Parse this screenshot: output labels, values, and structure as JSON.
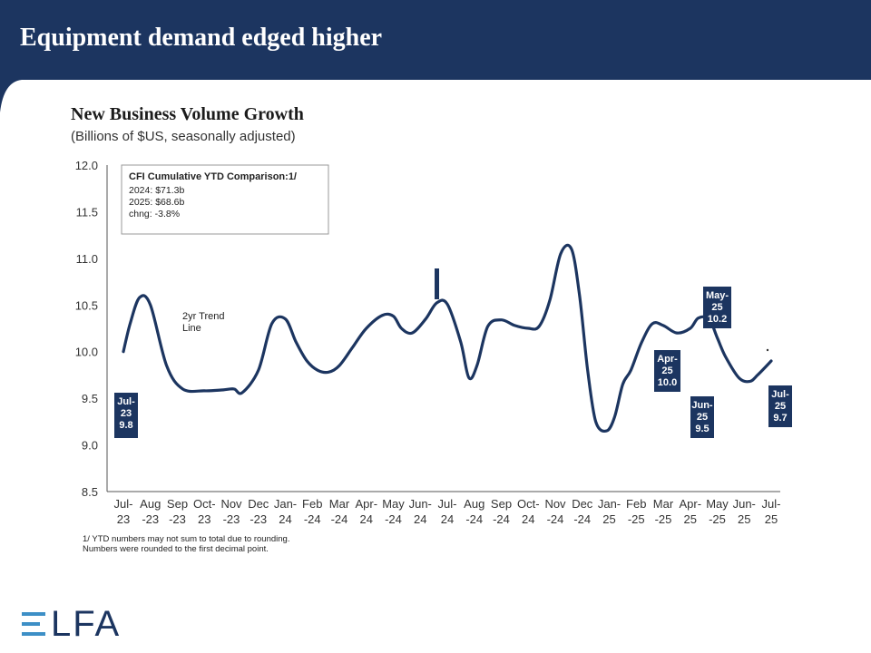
{
  "slide": {
    "title": "Equipment demand edged higher"
  },
  "logo": {
    "text": "LFA",
    "full_text": "ELFA"
  },
  "colors": {
    "header": "#1c3560",
    "line": "#1c3560",
    "callout_bg": "#1c3560",
    "logo_accent": "#3d8fc6"
  },
  "chart_data": {
    "type": "line",
    "title": "New Business Volume Growth",
    "subtitle": "(Billions of $US, seasonally adjusted)",
    "ylim": [
      8.5,
      12.0
    ],
    "yticks": [
      "12.0",
      "11.5",
      "11.0",
      "10.5",
      "10.0",
      "9.5",
      "9.0",
      "8.5"
    ],
    "ytick_values": [
      12.0,
      11.5,
      11.0,
      10.5,
      10.0,
      9.5,
      9.0,
      8.5
    ],
    "grid": false,
    "categories": [
      [
        "Jul-",
        "23"
      ],
      [
        "Aug",
        "-23"
      ],
      [
        "Sep",
        "-23"
      ],
      [
        "Oct-",
        "23"
      ],
      [
        "Nov",
        "-23"
      ],
      [
        "Dec",
        "-23"
      ],
      [
        "Jan-",
        "24"
      ],
      [
        "Feb",
        "-24"
      ],
      [
        "Mar",
        "-24"
      ],
      [
        "Apr-",
        "24"
      ],
      [
        "May",
        "-24"
      ],
      [
        "Jun-",
        "24"
      ],
      [
        "Jul-",
        "24"
      ],
      [
        "Aug",
        "-24"
      ],
      [
        "Sep",
        "-24"
      ],
      [
        "Oct-",
        "24"
      ],
      [
        "Nov",
        "-24"
      ],
      [
        "Dec",
        "-24"
      ],
      [
        "Jan-",
        "25"
      ],
      [
        "Feb",
        "-25"
      ],
      [
        "Mar",
        "-25"
      ],
      [
        "Apr-",
        "25"
      ],
      [
        "May",
        "-25"
      ],
      [
        "Jun-",
        "25"
      ],
      [
        "Jul-",
        "25"
      ]
    ],
    "series": [
      {
        "curve_x": [
          0,
          0.25,
          0.6,
          1.0,
          1.6,
          2.2,
          3.0,
          3.7,
          4.1,
          4.4,
          5.0,
          5.5,
          6.0,
          6.4,
          6.8,
          7.2,
          7.6,
          8.0,
          8.5,
          9.0,
          9.6,
          10.0,
          10.3,
          10.7,
          11.2,
          11.6,
          12.0,
          12.5,
          12.8,
          13.1,
          13.5,
          14.0,
          14.5,
          15.0,
          15.4,
          15.8,
          16.2,
          16.6,
          16.9,
          17.2,
          17.5,
          17.9,
          18.2,
          18.5,
          18.8,
          19.2,
          19.6,
          20.0,
          20.5,
          21.0,
          21.3,
          21.7,
          22.0,
          22.3,
          22.8,
          23.2,
          23.5,
          24.0
        ],
        "curve_y": [
          10.0,
          10.3,
          10.58,
          10.5,
          9.85,
          9.6,
          9.58,
          9.59,
          9.6,
          9.56,
          9.8,
          10.3,
          10.35,
          10.1,
          9.9,
          9.8,
          9.78,
          9.85,
          10.05,
          10.25,
          10.39,
          10.38,
          10.25,
          10.2,
          10.35,
          10.52,
          10.51,
          10.1,
          9.72,
          9.85,
          10.27,
          10.34,
          10.28,
          10.25,
          10.27,
          10.55,
          11.05,
          11.1,
          10.6,
          9.8,
          9.25,
          9.15,
          9.3,
          9.65,
          9.8,
          10.1,
          10.3,
          10.28,
          10.2,
          10.25,
          10.36,
          10.35,
          10.15,
          9.95,
          9.72,
          9.68,
          9.75,
          9.9
        ]
      }
    ],
    "callouts": [
      {
        "lines": [
          "Jul-",
          "23",
          "9.8"
        ],
        "x": 0,
        "y": 9.8
      },
      {
        "lines": [
          "Apr-",
          "25",
          "10.0"
        ],
        "x": 21,
        "y": 10.0
      },
      {
        "lines": [
          "May-",
          "25",
          "10.2"
        ],
        "x": 22,
        "y": 10.2
      },
      {
        "lines": [
          "Jun-",
          "25",
          "9.5"
        ],
        "x": 23,
        "y": 9.5
      },
      {
        "lines": [
          "Jul-",
          "25",
          "9.7"
        ],
        "x": 24,
        "y": 9.7
      }
    ],
    "annotation": {
      "lines": [
        "2yr Trend",
        "Line"
      ]
    },
    "info_box": {
      "title": "CFI Cumulative YTD Comparison:1/",
      "lines": [
        "2024: $71.3b",
        "2025: $68.6b",
        "chng: -3.8%"
      ]
    },
    "footnote": [
      "1/ YTD numbers may not sum to total due to rounding.",
      "Numbers were rounded to the first decimal point."
    ]
  }
}
